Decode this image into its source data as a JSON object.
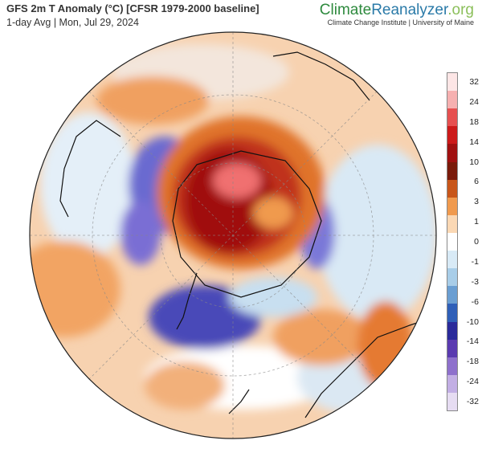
{
  "header": {
    "title": "GFS 2m T Anomaly (°C) [CFSR 1979-2000 baseline]",
    "subtitle": "1-day Avg | Mon, Jul 29, 2024"
  },
  "brand": {
    "name_part1": "Climate",
    "name_part2": "Reanalyzer",
    "name_part3": ".org",
    "subline": "Climate Change Institute | University of Maine"
  },
  "legend": {
    "labels": [
      "32",
      "24",
      "18",
      "14",
      "10",
      "6",
      "3",
      "1",
      "0",
      "-1",
      "-3",
      "-6",
      "-10",
      "-14",
      "-18",
      "-24",
      "-32"
    ],
    "colors": [
      "#fde6e6",
      "#f6b0b0",
      "#e65050",
      "#cc1a1a",
      "#a01010",
      "#7a1a0a",
      "#c8561a",
      "#f09a4e",
      "#fbd8b4",
      "#ffffff",
      "#d8eaf6",
      "#a8cde8",
      "#6a9ed2",
      "#2f5fb8",
      "#2a2a9a",
      "#5a3ab0",
      "#8e70cc",
      "#c2aee4",
      "#e6dcf2"
    ]
  },
  "map": {
    "projection": "south-polar-stereographic",
    "warm_color": "#a01010",
    "cold_color": "#4a3aaa"
  }
}
